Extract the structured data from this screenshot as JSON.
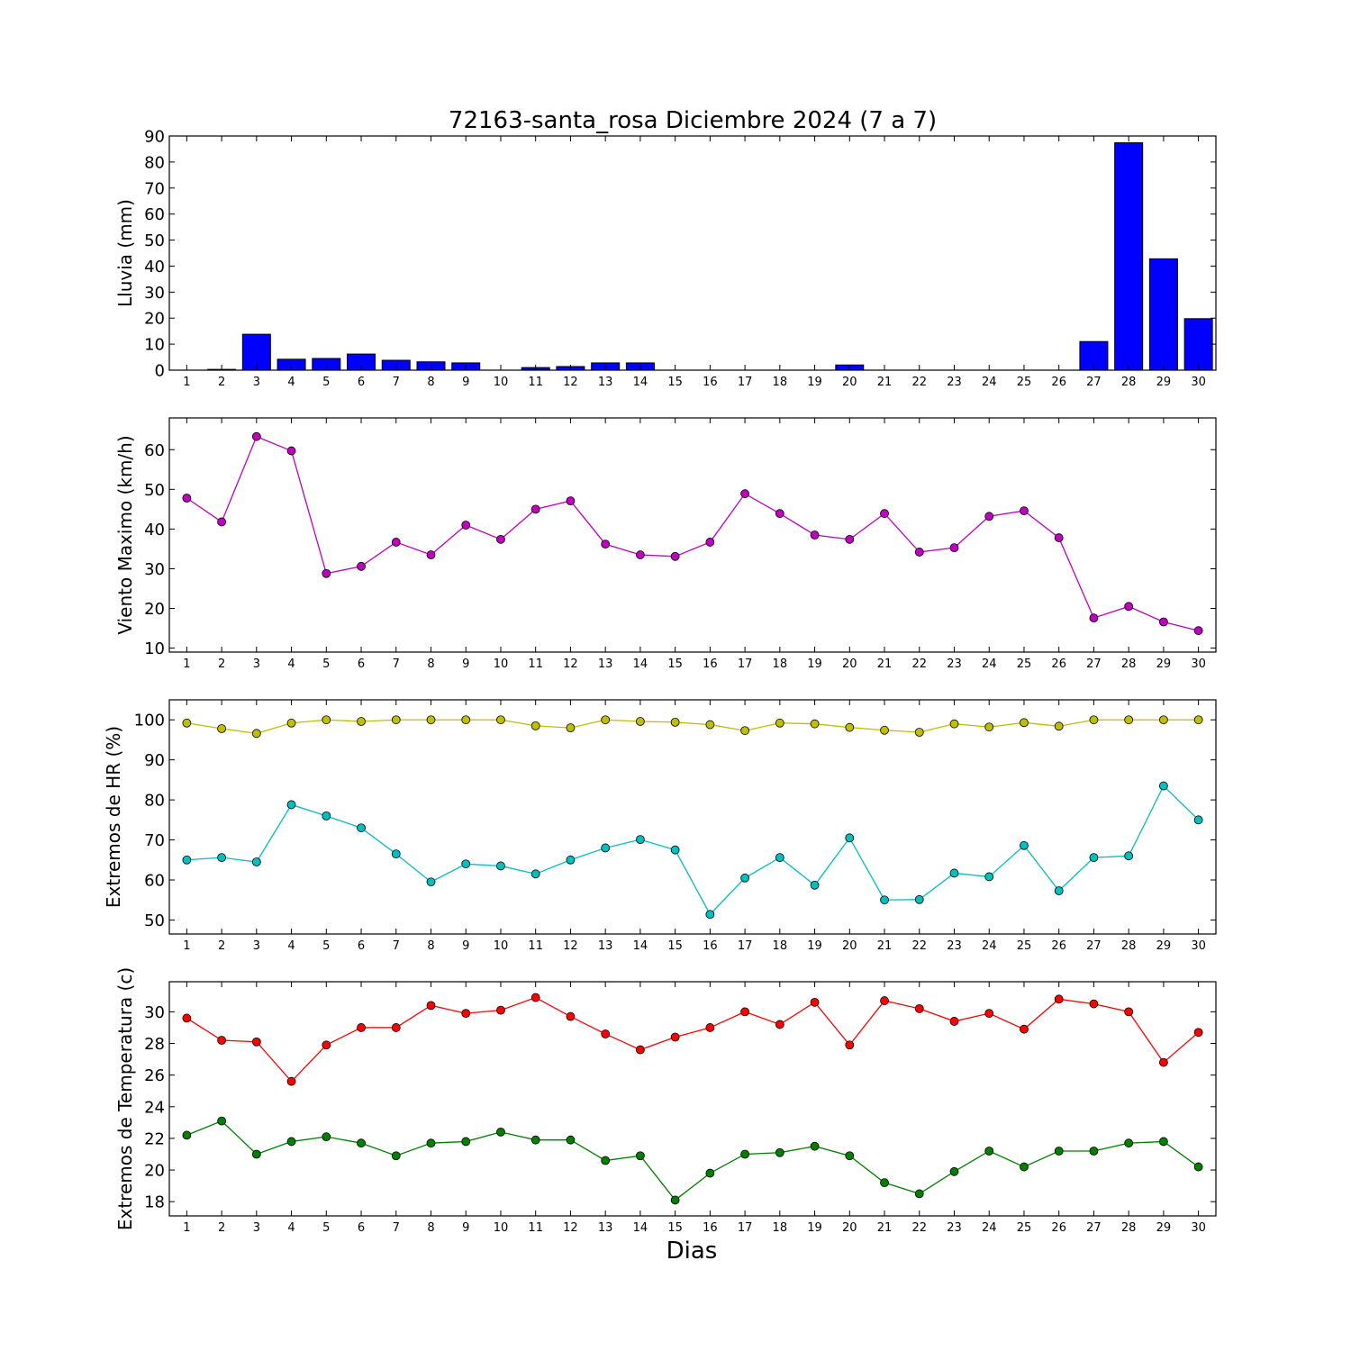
{
  "figure": {
    "title": "72163-santa_rosa Diciembre 2024  (7 a 7)",
    "xlabel": "Dias"
  },
  "chart_data": [
    {
      "type": "bar",
      "ylabel": "Lluvia (mm)",
      "ylim": [
        0,
        90
      ],
      "yticks": [
        0,
        10,
        20,
        30,
        40,
        50,
        60,
        70,
        80,
        90
      ],
      "xlim": [
        0.5,
        30.5
      ],
      "categories": [
        1,
        2,
        3,
        4,
        5,
        6,
        7,
        8,
        9,
        10,
        11,
        12,
        13,
        14,
        15,
        16,
        17,
        18,
        19,
        20,
        21,
        22,
        23,
        24,
        25,
        26,
        27,
        28,
        29,
        30
      ],
      "series": [
        {
          "color": "#0000ff",
          "values": [
            0,
            0.3,
            13.8,
            4.2,
            4.5,
            6.2,
            3.8,
            3.2,
            2.8,
            0,
            1.0,
            1.4,
            2.8,
            2.8,
            0,
            0,
            0,
            0,
            0,
            2.0,
            0,
            0,
            0,
            0,
            0,
            0,
            11.0,
            87.4,
            42.8,
            19.8
          ]
        }
      ]
    },
    {
      "type": "line",
      "ylabel": "Viento Maximo (km/h)",
      "ylim": [
        9,
        68
      ],
      "yticks": [
        10,
        20,
        30,
        40,
        50,
        60
      ],
      "xlim": [
        0.5,
        30.5
      ],
      "x": [
        1,
        2,
        3,
        4,
        5,
        6,
        7,
        8,
        9,
        10,
        11,
        12,
        13,
        14,
        15,
        16,
        17,
        18,
        19,
        20,
        21,
        22,
        23,
        24,
        25,
        26,
        27,
        28,
        29,
        30
      ],
      "series": [
        {
          "color": "#bf00bf",
          "values": [
            47.8,
            41.8,
            63.3,
            59.7,
            28.8,
            30.6,
            36.7,
            33.5,
            41.0,
            37.4,
            45.0,
            47.1,
            36.2,
            33.5,
            33.1,
            36.7,
            48.9,
            43.9,
            38.5,
            37.4,
            43.9,
            34.2,
            35.3,
            43.2,
            44.6,
            37.8,
            17.6,
            20.5,
            16.6,
            14.4
          ]
        }
      ]
    },
    {
      "type": "line",
      "ylabel": "Extremos de HR (%)",
      "ylim": [
        46.5,
        105
      ],
      "yticks": [
        50,
        60,
        70,
        80,
        90,
        100
      ],
      "xlim": [
        0.5,
        30.5
      ],
      "x": [
        1,
        2,
        3,
        4,
        5,
        6,
        7,
        8,
        9,
        10,
        11,
        12,
        13,
        14,
        15,
        16,
        17,
        18,
        19,
        20,
        21,
        22,
        23,
        24,
        25,
        26,
        27,
        28,
        29,
        30
      ],
      "series": [
        {
          "color": "#bfbf00",
          "values": [
            99.2,
            97.8,
            96.6,
            99.2,
            100,
            99.6,
            100,
            100,
            100,
            100,
            98.5,
            98.0,
            100,
            99.6,
            99.4,
            98.8,
            97.3,
            99.2,
            99.0,
            98.1,
            97.4,
            96.9,
            99.0,
            98.2,
            99.3,
            98.4,
            100,
            100,
            100,
            100
          ]
        },
        {
          "color": "#00bfbf",
          "values": [
            65.0,
            65.6,
            64.5,
            78.8,
            76.0,
            73.0,
            66.5,
            59.5,
            64.0,
            63.5,
            61.5,
            65.0,
            68.0,
            70.1,
            67.5,
            51.4,
            60.5,
            65.6,
            58.7,
            70.5,
            55.0,
            55.1,
            61.7,
            60.8,
            68.6,
            57.3,
            65.6,
            66.0,
            83.5,
            75.0
          ]
        }
      ]
    },
    {
      "type": "line",
      "ylabel": "Extremos de Temperatura (c)",
      "ylim": [
        17.1,
        31.9
      ],
      "yticks": [
        18,
        20,
        22,
        24,
        26,
        28,
        30
      ],
      "xlim": [
        0.5,
        30.5
      ],
      "x": [
        1,
        2,
        3,
        4,
        5,
        6,
        7,
        8,
        9,
        10,
        11,
        12,
        13,
        14,
        15,
        16,
        17,
        18,
        19,
        20,
        21,
        22,
        23,
        24,
        25,
        26,
        27,
        28,
        29,
        30
      ],
      "series": [
        {
          "color": "#ff0000",
          "values": [
            29.6,
            28.2,
            28.1,
            25.6,
            27.9,
            29.0,
            29.0,
            30.4,
            29.9,
            30.1,
            30.9,
            29.7,
            28.6,
            27.6,
            28.4,
            29.0,
            30.0,
            29.2,
            30.6,
            27.9,
            30.7,
            30.2,
            29.4,
            29.9,
            28.9,
            30.8,
            30.5,
            30.0,
            26.8,
            28.7
          ]
        },
        {
          "color": "#007f00",
          "values": [
            22.2,
            23.1,
            21.0,
            21.8,
            22.1,
            21.7,
            20.9,
            21.7,
            21.8,
            22.4,
            21.9,
            21.9,
            20.6,
            20.9,
            18.1,
            19.8,
            21.0,
            21.1,
            21.5,
            20.9,
            19.2,
            18.5,
            19.9,
            21.2,
            20.2,
            21.2,
            21.2,
            21.7,
            21.8,
            20.2
          ]
        }
      ]
    }
  ]
}
